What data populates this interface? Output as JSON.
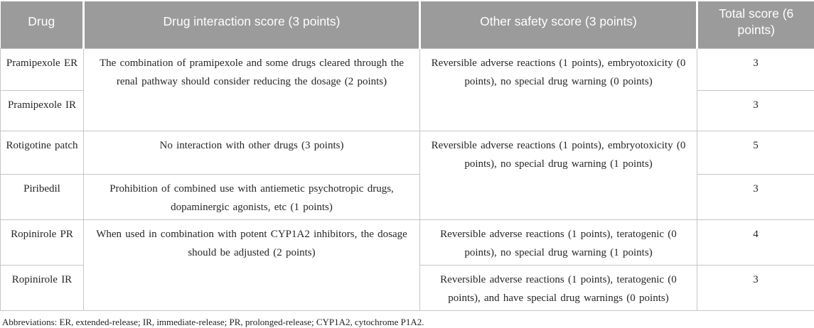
{
  "table": {
    "header": {
      "drug": "Drug",
      "interaction": "Drug interaction score (3 points)",
      "other_safety": "Other safety score (3 points)",
      "total": "Total score (6 points)"
    },
    "rows": [
      {
        "drug": "Pramipexole ER",
        "interaction": "The combination of pramipexole and some drugs cleared through the renal pathway should consider reducing the dosage (2 points)",
        "other_safety": "Reversible adverse reactions (1 points), embryotoxicity (0 points), no special drug warning (0 points)",
        "total": "3"
      },
      {
        "drug": "Pramipexole IR",
        "total": "3"
      },
      {
        "drug": "Rotigotine patch",
        "interaction": "No interaction with other drugs (3 points)",
        "other_safety": "Reversible adverse reactions (1 points), embryotoxicity (0 points), no special drug warning (1 points)",
        "total": "5"
      },
      {
        "drug": "Piribedil",
        "interaction": "Prohibition of combined use with antiemetic psychotropic drugs, dopaminergic agonists, etc (1 points)",
        "total": "3"
      },
      {
        "drug": "Ropinirole PR",
        "interaction": "When used in combination with potent CYP1A2 inhibitors, the dosage should be adjusted (2 points)",
        "other_safety": "Reversible adverse reactions (1 points), teratogenic (0 points), no special drug warning (1 points)",
        "total": "4"
      },
      {
        "drug": "Ropinirole IR",
        "other_safety": "Reversible adverse reactions (1 points), teratogenic (0 points), and have special drug warnings (0 points)",
        "total": "3"
      }
    ],
    "footnote": "Abbreviations: ER, extended-release; IR, immediate-release; PR, prolonged-release; CYP1A2, cytochrome P1A2."
  },
  "colors": {
    "header_bg": "#9b9b9b",
    "header_text": "#ffffff",
    "cell_border": "#c6c6c6",
    "body_text": "#262626"
  }
}
